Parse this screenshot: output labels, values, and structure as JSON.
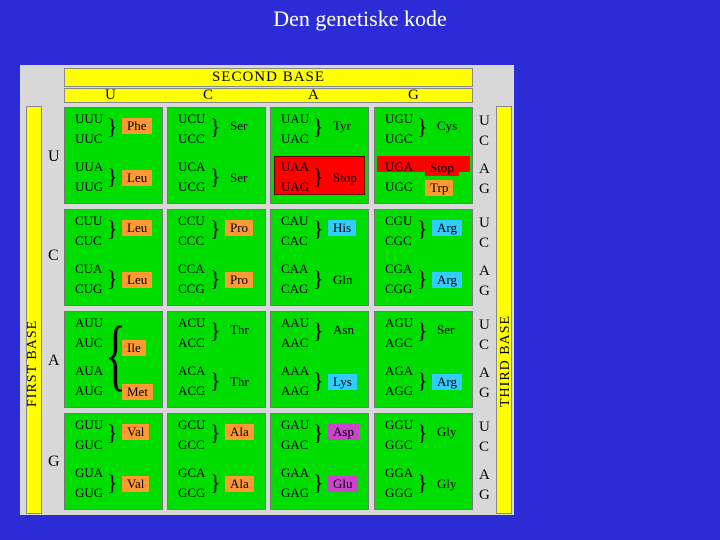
{
  "title": "Den genetiske kode",
  "header": {
    "second_base": "SECOND BASE",
    "letters": [
      "U",
      "C",
      "A",
      "G"
    ]
  },
  "first_base": {
    "label": "FIRST BASE",
    "letters": [
      "U",
      "C",
      "A",
      "G"
    ]
  },
  "third_base": {
    "label": "THIRD BASE",
    "letters": [
      "U",
      "C",
      "A",
      "G",
      "U",
      "C",
      "A",
      "G",
      "U",
      "C",
      "A",
      "G",
      "U",
      "C",
      "A",
      "G"
    ]
  },
  "colors": {
    "background": "#2c2cd6",
    "cell": "#00dd00",
    "header": "#ffff00",
    "stop": "#ff0000",
    "orange": "#ff9933",
    "cyan": "#33ccff",
    "magenta": "#cc44cc"
  },
  "cells": [
    {
      "codons": [
        "UUU",
        "UUC",
        "UUA",
        "UUG"
      ],
      "groups": [
        {
          "aa": "Phe",
          "color": "#ff9933"
        },
        {
          "aa": "Leu",
          "color": "#ff9933"
        }
      ]
    },
    {
      "codons": [
        "UCU",
        "UCC",
        "UCA",
        "UCG"
      ],
      "groups": [
        {
          "aa": "Ser",
          "color": ""
        },
        {
          "aa": "Ser",
          "color": ""
        }
      ]
    },
    {
      "codons": [
        "UAU",
        "UAC",
        "UAA",
        "UAG"
      ],
      "groups": [
        {
          "aa": "Tyr",
          "color": ""
        },
        {
          "aa": "Stop",
          "color": ""
        }
      ]
    },
    {
      "codons": [
        "UGU",
        "UGC",
        "UGA",
        "UGG"
      ],
      "groups": [
        {
          "aa": "Cys",
          "color": ""
        },
        {
          "aa": "Stop",
          "color": "#ff0000"
        },
        {
          "aa": "Trp",
          "color": "#ff9933"
        }
      ]
    },
    {
      "codons": [
        "CUU",
        "CUC",
        "CUA",
        "CUG"
      ],
      "groups": [
        {
          "aa": "Leu",
          "color": "#ff9933"
        },
        {
          "aa": "Leu",
          "color": "#ff9933"
        }
      ]
    },
    {
      "codons": [
        "CCU",
        "CCC",
        "CCA",
        "CCG"
      ],
      "groups": [
        {
          "aa": "Pro",
          "color": "#ff9933"
        },
        {
          "aa": "Pro",
          "color": "#ff9933"
        }
      ]
    },
    {
      "codons": [
        "CAU",
        "CAC",
        "CAA",
        "CAG"
      ],
      "groups": [
        {
          "aa": "His",
          "color": "#33ccff"
        },
        {
          "aa": "Gln",
          "color": ""
        }
      ]
    },
    {
      "codons": [
        "CGU",
        "CGC",
        "CGA",
        "CGG"
      ],
      "groups": [
        {
          "aa": "Arg",
          "color": "#33ccff"
        },
        {
          "aa": "Arg",
          "color": "#33ccff"
        }
      ]
    },
    {
      "codons": [
        "AUU",
        "AUC",
        "AUA",
        "AUG"
      ],
      "groups": [
        {
          "aa": "Ile",
          "color": "#ff9933"
        },
        {
          "aa": "Met",
          "color": "#ff9933"
        }
      ]
    },
    {
      "codons": [
        "ACU",
        "ACC",
        "ACA",
        "ACG"
      ],
      "groups": [
        {
          "aa": "Thr",
          "color": ""
        },
        {
          "aa": "Thr",
          "color": ""
        }
      ]
    },
    {
      "codons": [
        "AAU",
        "AAC",
        "AAA",
        "AAG"
      ],
      "groups": [
        {
          "aa": "Asn",
          "color": ""
        },
        {
          "aa": "Lys",
          "color": "#33ccff"
        }
      ]
    },
    {
      "codons": [
        "AGU",
        "AGC",
        "AGA",
        "AGG"
      ],
      "groups": [
        {
          "aa": "Ser",
          "color": ""
        },
        {
          "aa": "Arg",
          "color": "#33ccff"
        }
      ]
    },
    {
      "codons": [
        "GUU",
        "GUC",
        "GUA",
        "GUG"
      ],
      "groups": [
        {
          "aa": "Val",
          "color": "#ff9933"
        },
        {
          "aa": "Val",
          "color": "#ff9933"
        }
      ]
    },
    {
      "codons": [
        "GCU",
        "GCC",
        "GCA",
        "GCG"
      ],
      "groups": [
        {
          "aa": "Ala",
          "color": "#ff9933"
        },
        {
          "aa": "Ala",
          "color": "#ff9933"
        }
      ]
    },
    {
      "codons": [
        "GAU",
        "GAC",
        "GAA",
        "GAG"
      ],
      "groups": [
        {
          "aa": "Asp",
          "color": "#cc44cc"
        },
        {
          "aa": "Glu",
          "color": "#cc44cc"
        }
      ]
    },
    {
      "codons": [
        "GGU",
        "GGC",
        "GGA",
        "GGG"
      ],
      "groups": [
        {
          "aa": "Gly",
          "color": ""
        },
        {
          "aa": "Gly",
          "color": ""
        }
      ]
    }
  ]
}
